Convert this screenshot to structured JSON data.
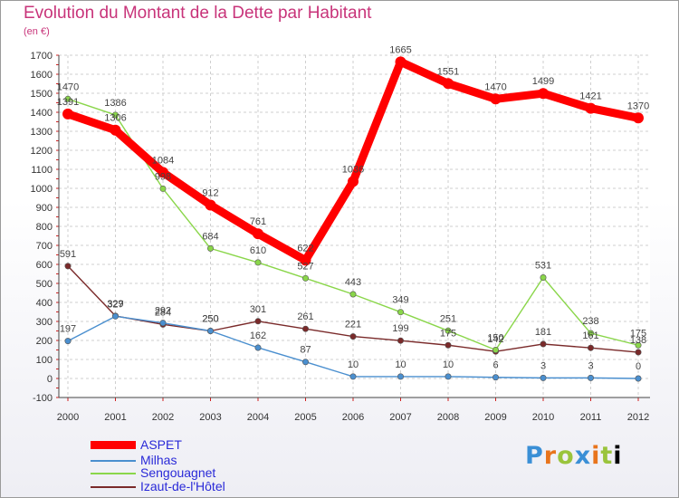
{
  "header": {
    "title": "Evolution du Montant de la Dette par Habitant",
    "unit": "(en €)"
  },
  "logo": {
    "text": "Proxiti"
  },
  "chart_data": {
    "type": "line",
    "x": [
      "2000",
      "2001",
      "2002",
      "2003",
      "2004",
      "2005",
      "2006",
      "2007",
      "2008",
      "2009",
      "2010",
      "2011",
      "2012"
    ],
    "ylim": [
      -100,
      1700
    ],
    "yticks": [
      -100,
      0,
      100,
      200,
      300,
      400,
      500,
      600,
      700,
      800,
      900,
      1000,
      1100,
      1200,
      1300,
      1400,
      1500,
      1600,
      1700
    ],
    "grid": true,
    "legend_position": "bottom-left",
    "series": [
      {
        "name": "ASPET",
        "color": "#ff0000",
        "values": [
          1391,
          1306,
          1084,
          912,
          761,
          622,
          1036,
          1665,
          1551,
          1470,
          1499,
          1421,
          1370
        ]
      },
      {
        "name": "Milhas",
        "color": "#4a8fcf",
        "values": [
          197,
          327,
          292,
          250,
          162,
          87,
          10,
          10,
          10,
          6,
          3,
          3,
          0
        ]
      },
      {
        "name": "Sengouagnet",
        "color": "#8ad64a",
        "values": [
          1470,
          1386,
          998,
          684,
          610,
          527,
          443,
          349,
          251,
          150,
          531,
          238,
          175
        ]
      },
      {
        "name": "Izaut-de-l'Hôtel",
        "color": "#7a2a2a",
        "values": [
          591,
          329,
          284,
          250,
          301,
          261,
          221,
          199,
          175,
          142,
          181,
          161,
          138
        ]
      }
    ]
  }
}
